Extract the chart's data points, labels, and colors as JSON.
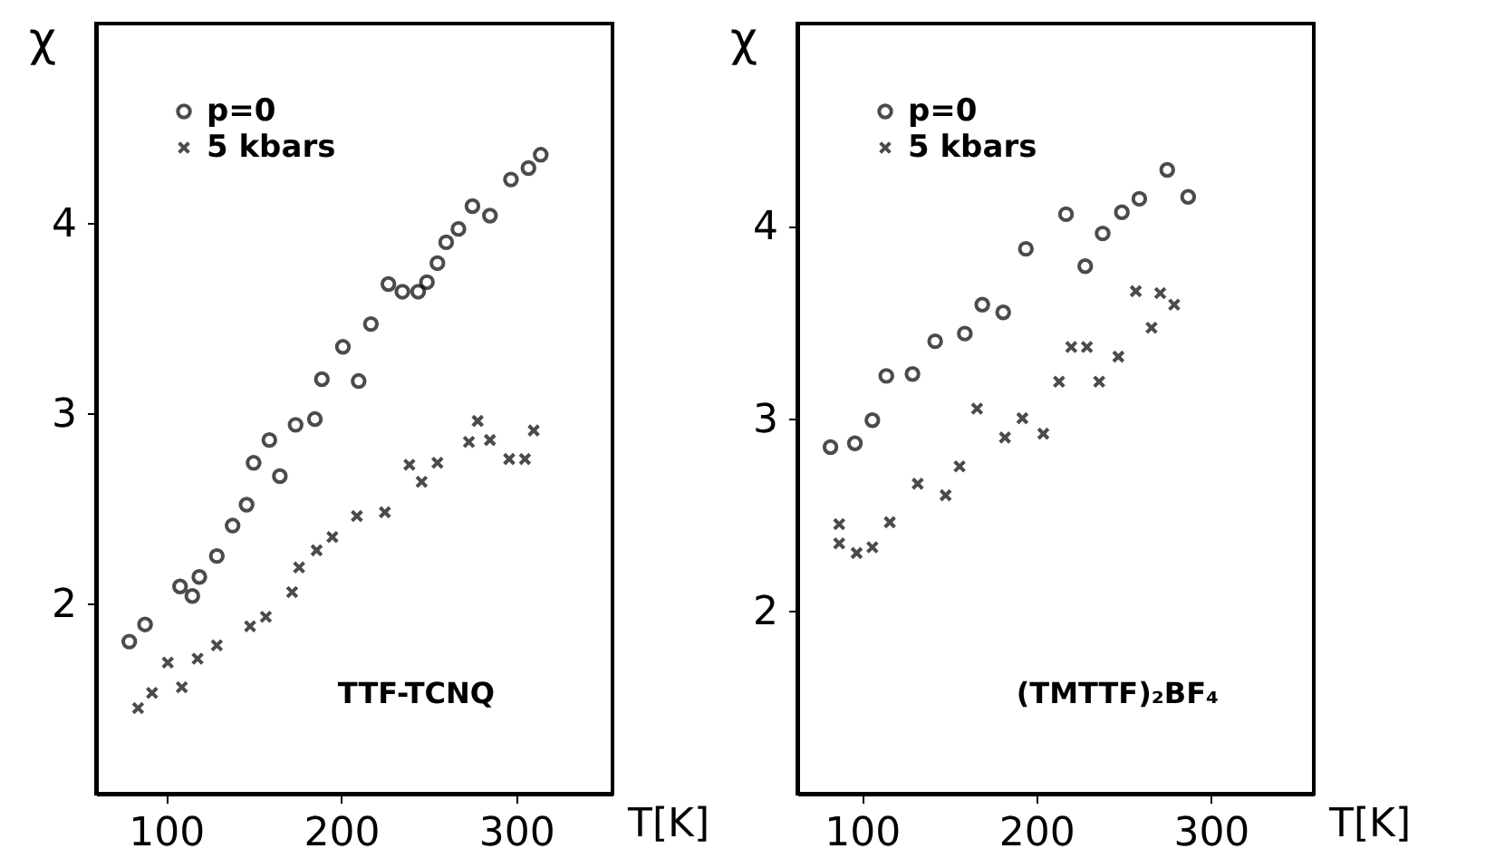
{
  "chart_data": [
    {
      "type": "scatter",
      "ylabel": "χ",
      "xlabel": "T[K]",
      "xlim": [
        60,
        355
      ],
      "xticks": [
        100,
        200,
        300
      ],
      "ylim": [
        1,
        5.05
      ],
      "yticks": [
        2,
        3,
        4
      ],
      "legend": "top left",
      "grid": false,
      "annotations": [
        "TTF-TCNQ"
      ],
      "series": [
        {
          "name": "p=0",
          "color": "#000000",
          "marker": "circle",
          "x": [
            79,
            88,
            108,
            115,
            119,
            129,
            138,
            146,
            150,
            159,
            165,
            174,
            185,
            189,
            201,
            210,
            217,
            227,
            235,
            244,
            249,
            255,
            260,
            267,
            275,
            285,
            297,
            307,
            314
          ],
          "values": [
            1.8,
            1.89,
            2.09,
            2.04,
            2.14,
            2.25,
            2.41,
            2.52,
            2.74,
            2.86,
            2.67,
            2.94,
            2.97,
            3.18,
            3.35,
            3.17,
            3.47,
            3.68,
            3.64,
            3.64,
            3.69,
            3.79,
            3.9,
            3.97,
            4.09,
            4.04,
            4.23,
            4.29,
            4.36
          ]
        },
        {
          "name": "5 kbars",
          "color": "#000000",
          "marker": "cross",
          "x": [
            84,
            92,
            101,
            109,
            118,
            129,
            148,
            157,
            172,
            176,
            186,
            195,
            209,
            225,
            239,
            246,
            255,
            273,
            278,
            285,
            296,
            305,
            310
          ],
          "values": [
            1.45,
            1.53,
            1.69,
            1.56,
            1.71,
            1.78,
            1.88,
            1.93,
            2.06,
            2.19,
            2.28,
            2.35,
            2.46,
            2.48,
            2.73,
            2.64,
            2.74,
            2.85,
            2.96,
            2.86,
            2.76,
            2.76,
            2.91
          ]
        }
      ]
    },
    {
      "type": "scatter",
      "ylabel": "χ",
      "xlabel": "T[K]",
      "xlim": [
        63,
        359
      ],
      "xticks": [
        100,
        200,
        300
      ],
      "ylim": [
        1.05,
        5.05
      ],
      "yticks": [
        2,
        3,
        4
      ],
      "legend": "top left",
      "grid": false,
      "annotations": [
        "(TMTTF)₂BF₄"
      ],
      "series": [
        {
          "name": "p=0",
          "color": "#000000",
          "marker": "circle",
          "x": [
            82,
            96,
            106,
            114,
            129,
            142,
            159,
            169,
            181,
            194,
            217,
            228,
            238,
            249,
            259,
            275,
            287
          ],
          "values": [
            2.85,
            2.87,
            2.99,
            3.22,
            3.23,
            3.4,
            3.44,
            3.59,
            3.55,
            3.88,
            4.06,
            3.79,
            3.96,
            4.07,
            4.14,
            4.29,
            4.15
          ]
        },
        {
          "name": "5 kbars",
          "color": "#000000",
          "marker": "cross",
          "x": [
            87,
            87,
            97,
            106,
            116,
            132,
            148,
            156,
            166,
            182,
            192,
            204,
            213,
            220,
            229,
            236,
            247,
            257,
            266,
            271,
            279
          ],
          "values": [
            2.45,
            2.35,
            2.3,
            2.33,
            2.46,
            2.66,
            2.6,
            2.75,
            3.05,
            2.9,
            3.0,
            2.92,
            3.19,
            3.37,
            3.37,
            3.19,
            3.32,
            3.66,
            3.47,
            3.65,
            3.59
          ]
        }
      ]
    }
  ]
}
